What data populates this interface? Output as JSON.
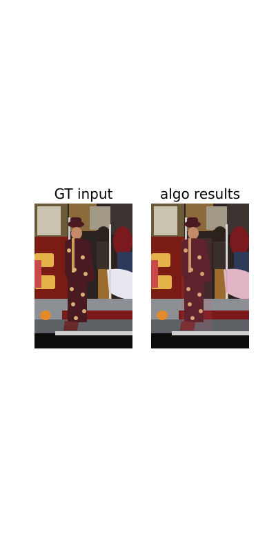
{
  "panels": [
    {
      "title": "GT input"
    },
    {
      "title": "algo results",
      "overlay_color": "#d65a7a"
    }
  ],
  "scene": {
    "description": "street performer on cable car",
    "colors": {
      "suit": "#4a1a22",
      "suit_pattern": "#d9b07a",
      "tram_red": "#7a1c14",
      "tram_wood": "#9c6b2e",
      "sign_yellow": "#e6b24a"
    }
  }
}
